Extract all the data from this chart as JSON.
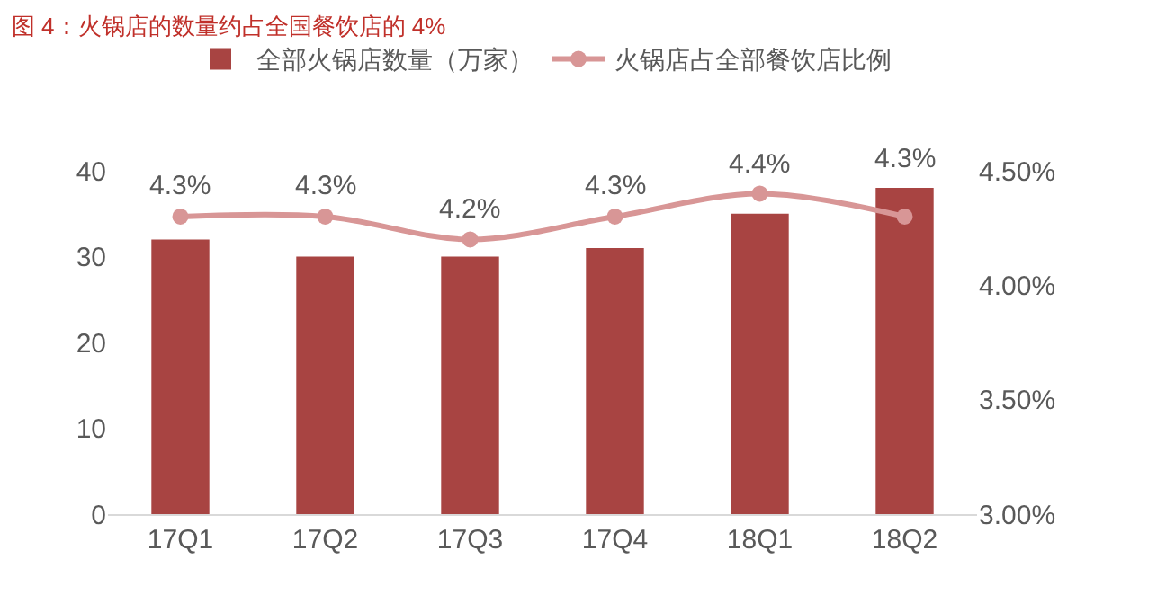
{
  "chart_data": {
    "type": "bar",
    "title": "图 4：火锅店的数量约占全国餐饮店的 4%",
    "categories": [
      "17Q1",
      "17Q2",
      "17Q3",
      "17Q4",
      "18Q1",
      "18Q2"
    ],
    "series": [
      {
        "name": "全部火锅店数量（万家）",
        "color": "#a84442",
        "values": [
          32,
          30,
          30,
          31,
          35,
          38
        ]
      },
      {
        "name": "火锅店占全部餐饮店比例",
        "type": "line",
        "axis": "y2",
        "color": "#d89696",
        "marker": "circle",
        "values": [
          4.3,
          4.3,
          4.2,
          4.3,
          4.4,
          4.3
        ],
        "value_labels": [
          "4.3%",
          "4.3%",
          "4.2%",
          "4.3%",
          "4.4%",
          "4.3%"
        ]
      }
    ],
    "ylim": [
      0,
      40
    ],
    "yticks": [
      0,
      10,
      20,
      30,
      40
    ],
    "y2lim": [
      3,
      4.5
    ],
    "y2ticks": [
      {
        "value": 3,
        "label": "3.00%"
      },
      {
        "value": 3.5,
        "label": "3.50%"
      },
      {
        "value": 4,
        "label": "4.00%"
      },
      {
        "value": 4.5,
        "label": "4.50%"
      }
    ],
    "grid": false,
    "legend": "top"
  }
}
